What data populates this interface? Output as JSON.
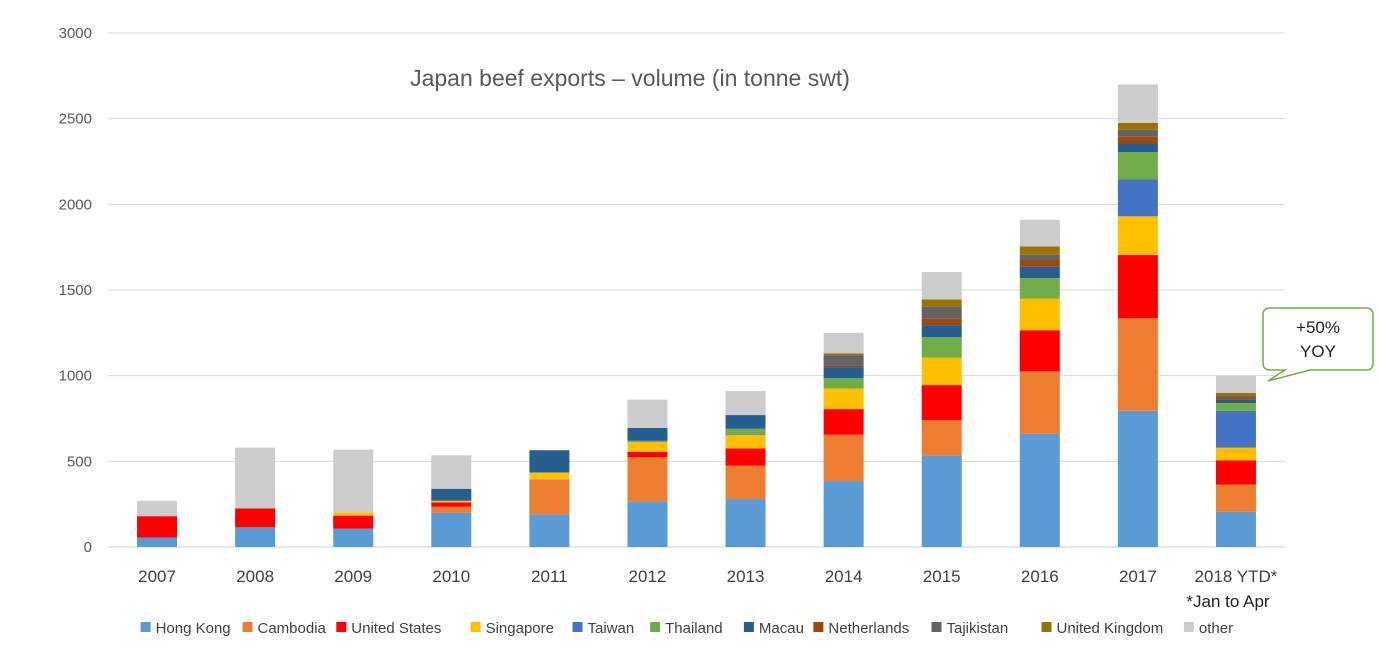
{
  "chart_data": {
    "type": "bar",
    "stacked": true,
    "title": "Japan beef exports – volume (in tonne swt)",
    "xlabel": "",
    "ylabel": "",
    "ylim": [
      0,
      3000
    ],
    "yticks": [
      0,
      500,
      1000,
      1500,
      2000,
      2500,
      3000
    ],
    "grid": true,
    "legend_position": "bottom",
    "categories": [
      "2007",
      "2008",
      "2009",
      "2010",
      "2011",
      "2012",
      "2013",
      "2014",
      "2015",
      "2016",
      "2017",
      "2018 YTD*"
    ],
    "category_note": "*Jan to Apr",
    "series": [
      {
        "name": "Hong Kong",
        "color": "#5B9BD5",
        "values": [
          55,
          115,
          108,
          200,
          190,
          265,
          280,
          385,
          535,
          660,
          795,
          205
        ]
      },
      {
        "name": "Cambodia",
        "color": "#ED7D31",
        "values": [
          0,
          0,
          0,
          35,
          205,
          260,
          195,
          270,
          205,
          365,
          540,
          160
        ]
      },
      {
        "name": "United States",
        "color": "#FF0000",
        "values": [
          125,
          110,
          75,
          25,
          0,
          30,
          100,
          150,
          205,
          240,
          370,
          140
        ]
      },
      {
        "name": "Singapore",
        "color": "#FFC000",
        "values": [
          0,
          0,
          20,
          10,
          40,
          60,
          80,
          120,
          160,
          185,
          225,
          75
        ]
      },
      {
        "name": "Taiwan",
        "color": "#4472C4",
        "values": [
          0,
          0,
          0,
          0,
          0,
          5,
          5,
          0,
          0,
          0,
          215,
          215
        ]
      },
      {
        "name": "Thailand",
        "color": "#70AD47",
        "values": [
          0,
          0,
          0,
          0,
          0,
          0,
          30,
          60,
          120,
          120,
          160,
          45
        ]
      },
      {
        "name": "Macau",
        "color": "#255E91",
        "values": [
          0,
          0,
          0,
          70,
          130,
          75,
          80,
          65,
          70,
          65,
          50,
          20
        ]
      },
      {
        "name": "Netherlands",
        "color": "#9E480E",
        "values": [
          0,
          0,
          0,
          0,
          0,
          0,
          0,
          10,
          40,
          40,
          40,
          15
        ]
      },
      {
        "name": "Tajikistan",
        "color": "#636363",
        "values": [
          0,
          0,
          0,
          0,
          0,
          0,
          0,
          60,
          70,
          30,
          40,
          10
        ]
      },
      {
        "name": "United Kingdom",
        "color": "#997300",
        "values": [
          0,
          0,
          0,
          0,
          0,
          0,
          0,
          10,
          40,
          50,
          40,
          15
        ]
      },
      {
        "name": "other",
        "color": "#CCCCCC",
        "values": [
          90,
          355,
          365,
          195,
          0,
          165,
          140,
          120,
          160,
          155,
          225,
          100
        ]
      }
    ],
    "annotations": [
      {
        "text_line1": "+50%",
        "text_line2": "YOY",
        "target": "2018 YTD*"
      }
    ]
  }
}
